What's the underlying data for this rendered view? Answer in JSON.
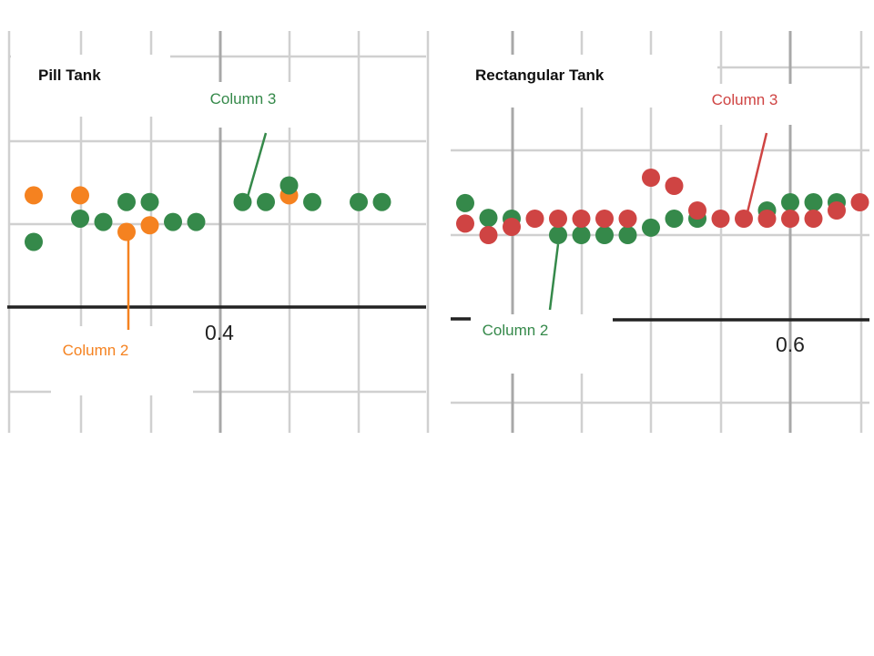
{
  "colors": {
    "green": "#35894a",
    "orange": "#f58220",
    "red": "#cf4443",
    "grid_minor": "#d3d3d3",
    "grid_major": "#bdbdbd",
    "axis": "#222222"
  },
  "chart_data": [
    {
      "type": "scatter",
      "title": "Pill Tank",
      "x_tick_label": "0.4",
      "grid": true,
      "series": [
        {
          "name": "Column 2",
          "color": "#f58220",
          "points": [
            [
              1,
              1.2
            ],
            [
              3,
              1.2
            ],
            [
              5,
              0.65
            ],
            [
              6,
              0.75
            ],
            [
              12,
              1.2
            ]
          ]
        },
        {
          "name": "Column 3",
          "color": "#35894a",
          "points": [
            [
              1,
              0.5
            ],
            [
              3,
              0.85
            ],
            [
              4,
              0.8
            ],
            [
              5,
              1.1
            ],
            [
              6,
              1.1
            ],
            [
              7,
              0.8
            ],
            [
              8,
              0.8
            ],
            [
              10,
              1.1
            ],
            [
              11,
              1.1
            ],
            [
              12,
              1.35
            ],
            [
              13,
              1.1
            ],
            [
              15,
              1.1
            ],
            [
              16,
              1.1
            ]
          ]
        }
      ],
      "annotations": [
        {
          "text": "Column 2",
          "color": "#f58220"
        },
        {
          "text": "Column 3",
          "color": "#35894a"
        }
      ]
    },
    {
      "type": "scatter",
      "title": "Rectangular Tank",
      "x_tick_label": "0.6",
      "grid": true,
      "series": [
        {
          "name": "Column 2",
          "color": "#35894a",
          "points": [
            [
              1,
              3.9
            ],
            [
              2,
              2.1
            ],
            [
              3,
              2.0
            ],
            [
              5,
              0.0
            ],
            [
              6,
              0.0
            ],
            [
              7,
              0.0
            ],
            [
              8,
              0.0
            ],
            [
              9,
              0.9
            ],
            [
              10,
              2.0
            ],
            [
              11,
              2.0
            ],
            [
              14,
              3.0
            ],
            [
              15,
              4.0
            ],
            [
              16,
              4.0
            ],
            [
              17,
              4.0
            ]
          ]
        },
        {
          "name": "Column 3",
          "color": "#cf4443",
          "points": [
            [
              1,
              1.4
            ],
            [
              2,
              0.0
            ],
            [
              3,
              1.0
            ],
            [
              4,
              2.0
            ],
            [
              5,
              2.0
            ],
            [
              6,
              2.0
            ],
            [
              7,
              2.0
            ],
            [
              8,
              2.0
            ],
            [
              9,
              7.0
            ],
            [
              10,
              6.0
            ],
            [
              11,
              3.0
            ],
            [
              12,
              2.0
            ],
            [
              13,
              2.0
            ],
            [
              14,
              2.0
            ],
            [
              15,
              2.0
            ],
            [
              16,
              2.0
            ],
            [
              17,
              3.0
            ],
            [
              18,
              4.0
            ]
          ]
        }
      ],
      "annotations": [
        {
          "text": "Column 2",
          "color": "#35894a"
        },
        {
          "text": "Column 3",
          "color": "#cf4443"
        }
      ]
    }
  ]
}
